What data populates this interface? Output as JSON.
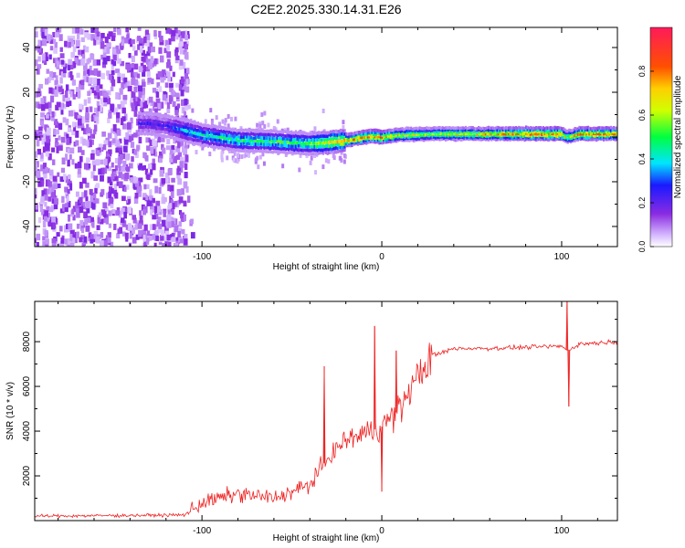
{
  "title": "C2E2.2025.330.14.31.E26",
  "chart_data": [
    {
      "type": "heatmap",
      "name": "spectrogram",
      "xlabel": "Height of straight line (km)",
      "ylabel": "Frequency (Hz)",
      "xlim": [
        -193,
        131
      ],
      "ylim": [
        -49,
        49
      ],
      "x_ticks": [
        -100,
        0,
        100
      ],
      "x_tick_labels": [
        "-100",
        "0",
        "100"
      ],
      "y_ticks": [
        -40,
        -20,
        0,
        20,
        40
      ],
      "y_tick_labels": [
        "-40",
        "-20",
        "0",
        "20",
        "40"
      ],
      "noise_region_x": [
        -193,
        -108
      ],
      "ridge": {
        "x": [
          -130,
          -120,
          -110,
          -100,
          -80,
          -60,
          -40,
          -30,
          -20,
          -10,
          -5,
          0,
          10,
          30,
          60,
          90,
          100,
          103,
          110,
          131
        ],
        "freq": [
          6,
          5,
          3,
          1,
          -1.5,
          -2,
          -3,
          -2.5,
          -1.5,
          0,
          0.5,
          0,
          1,
          1.5,
          1.5,
          1.5,
          1.5,
          0,
          1.5,
          1.5
        ],
        "amplitude": [
          0.25,
          0.25,
          0.4,
          0.45,
          0.5,
          0.5,
          0.55,
          0.7,
          0.8,
          0.85,
          0.85,
          0.9,
          0.7,
          0.65,
          0.75,
          0.9,
          0.9,
          0.6,
          0.85,
          0.85
        ]
      },
      "colorbar": {
        "label": "Normalized spectral amplitude",
        "range": [
          0,
          1
        ],
        "ticks": [
          0.0,
          0.2,
          0.4,
          0.6,
          0.8
        ],
        "tick_labels": [
          "0.0",
          "0.2",
          "0.4",
          "0.6",
          "0.8"
        ]
      }
    },
    {
      "type": "line",
      "name": "snr",
      "xlabel": "Height of straight line (km)",
      "ylabel": "SNR (10 * v/v)",
      "xlim": [
        -193,
        131
      ],
      "ylim": [
        0,
        9800
      ],
      "x_ticks": [
        -100,
        0,
        100
      ],
      "x_tick_labels": [
        "-100",
        "0",
        "100"
      ],
      "y_ticks": [
        2000,
        4000,
        6000,
        8000
      ],
      "y_tick_labels": [
        "2000",
        "4000",
        "6000",
        "8000"
      ],
      "color": "#ee2222",
      "baseline": {
        "x": [
          -193,
          -110,
          -100,
          -80,
          -60,
          -40,
          -30,
          -20,
          -10,
          0,
          10,
          20,
          30,
          40,
          60,
          80,
          100,
          103,
          110,
          131
        ],
        "y": [
          200,
          250,
          800,
          1200,
          1000,
          1600,
          2800,
          3600,
          3900,
          4200,
          5000,
          6500,
          7400,
          7700,
          7700,
          7750,
          7800,
          7600,
          7900,
          8000
        ]
      },
      "spikes": [
        {
          "x": -32,
          "y": 6900
        },
        {
          "x": -4,
          "y": 8700
        },
        {
          "x": 0,
          "y": 1300
        },
        {
          "x": 8,
          "y": 7600
        },
        {
          "x": 103,
          "y": 9800
        },
        {
          "x": 104,
          "y": 5100
        }
      ]
    }
  ]
}
